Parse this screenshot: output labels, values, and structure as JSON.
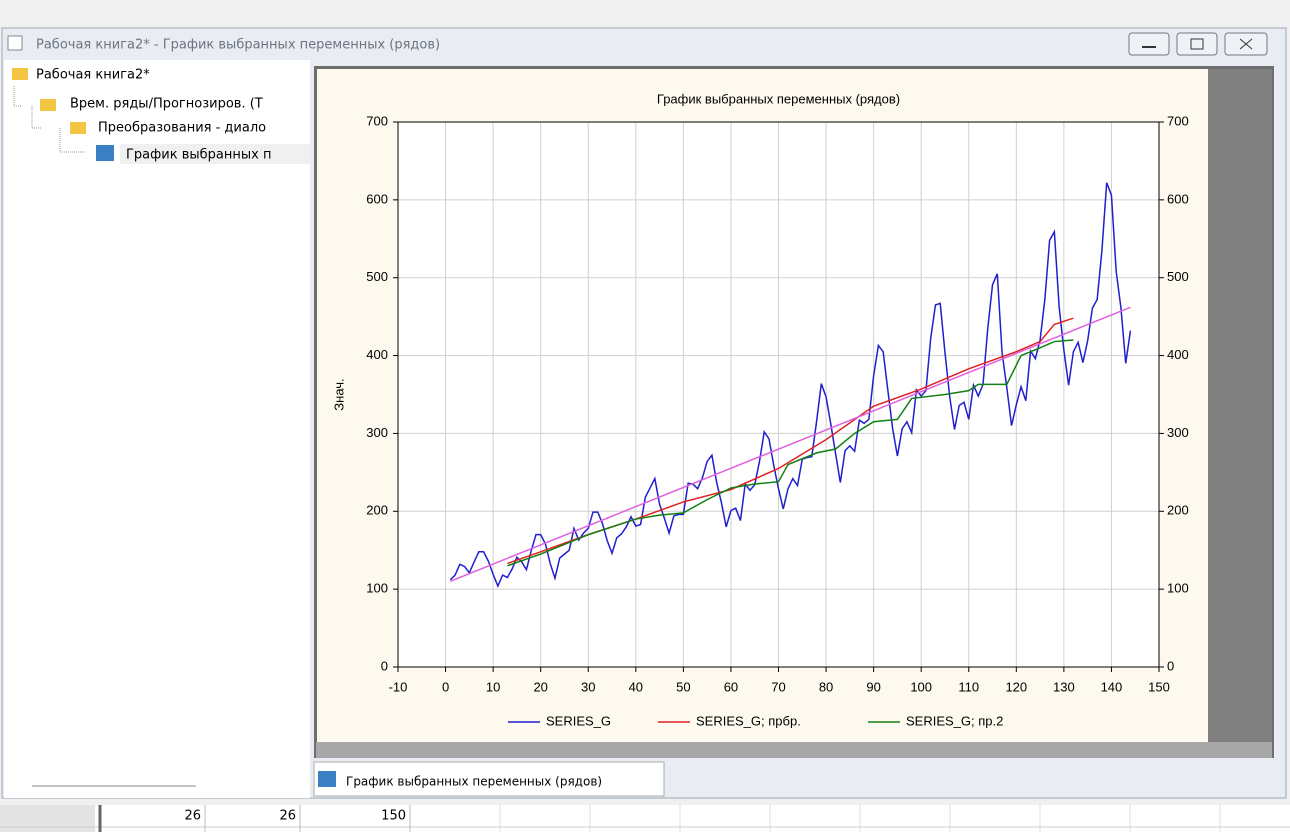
{
  "window": {
    "title": "Рабочая книга2* - График выбранных переменных (рядов)"
  },
  "tree": {
    "nodes": [
      {
        "label": "Рабочая книга2*"
      },
      {
        "label": "Врем. ряды/Прогнозиров. (Т"
      },
      {
        "label": "Преобразования - диало"
      },
      {
        "label": "График выбранных п"
      }
    ]
  },
  "tab": {
    "label": "График выбранных переменных (рядов)"
  },
  "table": {
    "rows": [
      [
        26,
        26,
        150
      ]
    ]
  },
  "chart_data": {
    "type": "line",
    "title": "График выбранных переменных (рядов)",
    "y_label": "Знач.",
    "xlim": [
      -10,
      150
    ],
    "xticks": [
      -10,
      0,
      10,
      20,
      30,
      40,
      50,
      60,
      70,
      80,
      90,
      100,
      110,
      120,
      130,
      140,
      150
    ],
    "ylim": [
      0,
      700
    ],
    "yticks": [
      0,
      100,
      200,
      300,
      400,
      500,
      600,
      700
    ],
    "y2lim": [
      0,
      700
    ],
    "y2ticks": [
      0,
      100,
      200,
      300,
      400,
      500,
      600,
      700
    ],
    "grid": true,
    "series": [
      {
        "name": "SERIES_G",
        "color": "#1f1fd0",
        "x": [
          1,
          2,
          3,
          4,
          5,
          6,
          7,
          8,
          9,
          10,
          11,
          12,
          13,
          14,
          15,
          16,
          17,
          18,
          19,
          20,
          21,
          22,
          23,
          24,
          25,
          26,
          27,
          28,
          29,
          30,
          31,
          32,
          33,
          34,
          35,
          36,
          37,
          38,
          39,
          40,
          41,
          42,
          43,
          44,
          45,
          46,
          47,
          48,
          49,
          50,
          51,
          52,
          53,
          54,
          55,
          56,
          57,
          58,
          59,
          60,
          61,
          62,
          63,
          64,
          65,
          66,
          67,
          68,
          69,
          70,
          71,
          72,
          73,
          74,
          75,
          76,
          77,
          78,
          79,
          80,
          81,
          82,
          83,
          84,
          85,
          86,
          87,
          88,
          89,
          90,
          91,
          92,
          93,
          94,
          95,
          96,
          97,
          98,
          99,
          100,
          101,
          102,
          103,
          104,
          105,
          106,
          107,
          108,
          109,
          110,
          111,
          112,
          113,
          114,
          115,
          116,
          117,
          118,
          119,
          120,
          121,
          122,
          123,
          124,
          125,
          126,
          127,
          128,
          129,
          130,
          131,
          132,
          133,
          134,
          135,
          136,
          137,
          138,
          139,
          140,
          141,
          142,
          143,
          144
        ],
        "values": [
          112,
          118,
          132,
          129,
          121,
          135,
          148,
          148,
          136,
          119,
          104,
          118,
          115,
          126,
          141,
          135,
          125,
          149,
          170,
          170,
          158,
          133,
          114,
          140,
          145,
          150,
          178,
          163,
          172,
          178,
          199,
          199,
          184,
          162,
          146,
          166,
          171,
          180,
          193,
          181,
          183,
          218,
          230,
          242,
          209,
          191,
          172,
          194,
          196,
          196,
          236,
          235,
          229,
          243,
          264,
          272,
          237,
          211,
          180,
          201,
          204,
          188,
          235,
          227,
          234,
          264,
          302,
          293,
          259,
          229,
          203,
          229,
          242,
          233,
          267,
          269,
          270,
          315,
          364,
          347,
          312,
          274,
          237,
          278,
          284,
          277,
          317,
          313,
          318,
          374,
          413,
          405,
          355,
          306,
          271,
          306,
          315,
          301,
          356,
          348,
          355,
          422,
          465,
          467,
          404,
          347,
          305,
          336,
          340,
          318,
          362,
          348,
          363,
          435,
          491,
          505,
          404,
          359,
          310,
          337,
          360,
          342,
          406,
          396,
          420,
          472,
          548,
          559,
          463,
          407,
          362,
          405,
          417,
          391,
          419,
          461,
          472,
          535,
          622,
          606,
          508,
          461,
          390,
          432
        ]
      },
      {
        "name": "SERIES_G; прбр.",
        "color": "#e02020",
        "x": [
          13,
          20,
          30,
          40,
          50,
          60,
          70,
          80,
          90,
          100,
          110,
          120,
          125,
          128,
          132
        ],
        "values": [
          133,
          148,
          170,
          190,
          212,
          228,
          255,
          292,
          335,
          357,
          383,
          405,
          418,
          440,
          448
        ]
      },
      {
        "name": "SERIES_G; пр.2",
        "color": "#108010",
        "x": [
          13,
          20,
          30,
          40,
          45,
          50,
          55,
          60,
          65,
          70,
          72,
          78,
          82,
          86,
          90,
          95,
          98,
          105,
          110,
          112,
          118,
          121,
          125,
          128,
          132
        ],
        "values": [
          130,
          145,
          170,
          190,
          195,
          198,
          215,
          230,
          235,
          238,
          260,
          275,
          280,
          300,
          315,
          318,
          345,
          350,
          355,
          363,
          363,
          400,
          410,
          418,
          420
        ]
      },
      {
        "name": "",
        "color": "#e060e0",
        "x": [
          1,
          144
        ],
        "values": [
          110,
          462
        ]
      }
    ]
  }
}
